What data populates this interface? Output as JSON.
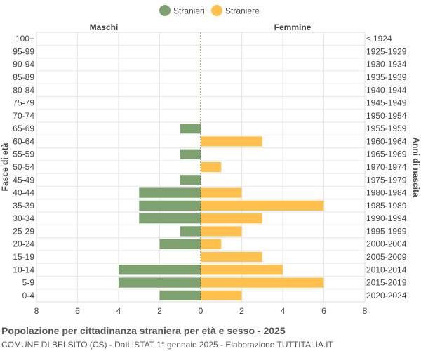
{
  "chart_data": {
    "type": "bar",
    "orientation": "horizontal",
    "title": "Popolazione per cittadinanza straniera per età e sesso - 2025",
    "subtitle": "COMUNE DI BELSITO (CS) - Dati ISTAT 1° gennaio 2025 - Elaborazione TUTTITALIA.IT",
    "left_header": "Maschi",
    "right_header": "Femmine",
    "ylabel_left": "Fasce di età",
    "ylabel_right": "Anni di nascita",
    "legend_position": "top-center",
    "grid": true,
    "xlim": [
      -8,
      8
    ],
    "x_ticks": [
      -8,
      -6,
      -4,
      -2,
      0,
      2,
      4,
      6,
      8
    ],
    "x_tick_labels": [
      "8",
      "6",
      "4",
      "2",
      "0",
      "2",
      "4",
      "6",
      "8"
    ],
    "categories": [
      "100+",
      "95-99",
      "90-94",
      "85-89",
      "80-84",
      "75-79",
      "70-74",
      "65-69",
      "60-64",
      "55-59",
      "50-54",
      "45-49",
      "40-44",
      "35-39",
      "30-34",
      "25-29",
      "20-24",
      "15-19",
      "10-14",
      "5-9",
      "0-4"
    ],
    "birth_years": [
      "≤ 1924",
      "1925-1929",
      "1930-1934",
      "1935-1939",
      "1940-1944",
      "1945-1949",
      "1950-1954",
      "1955-1959",
      "1960-1964",
      "1965-1969",
      "1970-1974",
      "1975-1979",
      "1980-1984",
      "1985-1989",
      "1990-1994",
      "1995-1999",
      "2000-2004",
      "2005-2009",
      "2010-2014",
      "2015-2019",
      "2020-2024"
    ],
    "series": [
      {
        "name": "Stranieri",
        "color": "#7ea26f",
        "values": [
          0,
          0,
          0,
          0,
          0,
          0,
          0,
          1,
          0,
          1,
          0,
          1,
          3,
          3,
          3,
          1,
          2,
          0,
          4,
          4,
          2
        ]
      },
      {
        "name": "Straniere",
        "color": "#ffc04d",
        "values": [
          0,
          0,
          0,
          0,
          0,
          0,
          0,
          0,
          3,
          0,
          1,
          0,
          2,
          6,
          3,
          2,
          1,
          3,
          4,
          6,
          2
        ]
      }
    ]
  }
}
